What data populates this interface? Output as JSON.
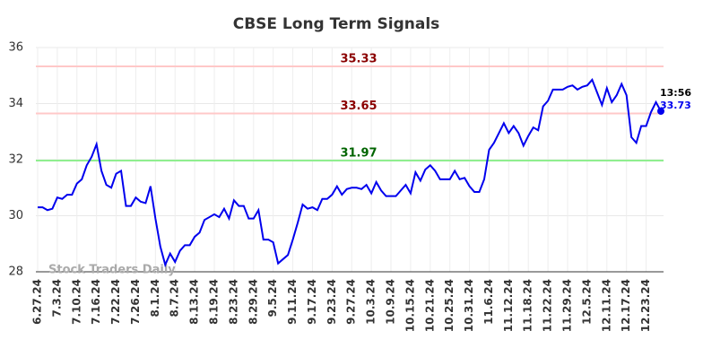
{
  "chart_data": {
    "type": "line",
    "title": "CBSE Long Term Signals",
    "categories": [
      "6.27.24",
      null,
      null,
      null,
      "7.3.24",
      null,
      null,
      null,
      "7.10.24",
      null,
      null,
      null,
      "7.16.24",
      null,
      null,
      null,
      "7.22.24",
      null,
      null,
      null,
      "7.26.24",
      null,
      null,
      null,
      "8.1.24",
      null,
      null,
      null,
      "8.7.24",
      null,
      null,
      null,
      "8.13.24",
      null,
      null,
      null,
      "8.19.24",
      null,
      null,
      null,
      "8.23.24",
      null,
      null,
      null,
      "8.29.24",
      null,
      null,
      null,
      "9.5.24",
      null,
      null,
      null,
      "9.11.24",
      null,
      null,
      null,
      "9.17.24",
      null,
      null,
      null,
      "9.23.24",
      null,
      null,
      null,
      "9.27.24",
      null,
      null,
      null,
      "10.3.24",
      null,
      null,
      null,
      "10.9.24",
      null,
      null,
      null,
      "10.15.24",
      null,
      null,
      null,
      "10.21.24",
      null,
      null,
      null,
      "10.25.24",
      null,
      null,
      null,
      "10.31.24",
      null,
      null,
      null,
      "11.6.24",
      null,
      null,
      null,
      "11.12.24",
      null,
      null,
      null,
      "11.18.24",
      null,
      null,
      null,
      "11.22.24",
      null,
      null,
      null,
      "11.29.24",
      null,
      null,
      null,
      "12.5.24",
      null,
      null,
      null,
      "12.11.24",
      null,
      null,
      null,
      "12.17.24",
      null,
      null,
      null,
      "12.23.24",
      null,
      null,
      null
    ],
    "series": [
      {
        "color": "#0000ee",
        "values": [
          30.3,
          30.3,
          30.2,
          30.25,
          30.65,
          30.6,
          30.75,
          30.75,
          31.15,
          31.3,
          31.8,
          32.1,
          32.55,
          31.6,
          31.1,
          31.0,
          31.5,
          31.6,
          30.35,
          30.35,
          30.65,
          30.5,
          30.45,
          31.05,
          29.9,
          28.9,
          28.25,
          28.65,
          28.35,
          28.75,
          28.95,
          28.95,
          29.25,
          29.4,
          29.85,
          29.95,
          30.05,
          29.95,
          30.25,
          29.9,
          30.55,
          30.35,
          30.35,
          29.9,
          29.9,
          30.2,
          29.15,
          29.15,
          29.05,
          28.3,
          28.45,
          28.6,
          29.15,
          29.75,
          30.4,
          30.25,
          30.3,
          30.2,
          30.6,
          30.6,
          30.75,
          31.05,
          30.75,
          30.95,
          31.0,
          31.0,
          30.95,
          31.1,
          30.8,
          31.2,
          30.9,
          30.7,
          30.7,
          30.7,
          30.9,
          31.1,
          30.8,
          31.55,
          31.25,
          31.65,
          31.8,
          31.6,
          31.3,
          31.3,
          31.3,
          31.6,
          31.3,
          31.35,
          31.05,
          30.85,
          30.85,
          31.3,
          32.35,
          32.6,
          32.95,
          33.3,
          32.95,
          33.2,
          32.95,
          32.5,
          32.85,
          33.15,
          33.05,
          33.9,
          34.1,
          34.5,
          34.5,
          34.5,
          34.6,
          34.65,
          34.5,
          34.6,
          34.65,
          34.85,
          34.4,
          33.95,
          34.55,
          34.05,
          34.3,
          34.7,
          34.3,
          32.8,
          32.6,
          33.2,
          33.2,
          33.7,
          34.05,
          33.73
        ]
      }
    ],
    "ylim": [
      28,
      36
    ],
    "yticks": [
      28,
      30,
      32,
      34,
      36
    ],
    "grid": true,
    "hlines": [
      {
        "value": 35.33,
        "color": "#ffc8c8",
        "label_color": "#8b0000"
      },
      {
        "value": 33.65,
        "color": "#ffc8c8",
        "label_color": "#8b0000"
      },
      {
        "value": 31.97,
        "color": "#90ee90",
        "label_color": "#006400"
      }
    ],
    "last_time": "13:56",
    "watermark": "Stock Traders Daily"
  }
}
